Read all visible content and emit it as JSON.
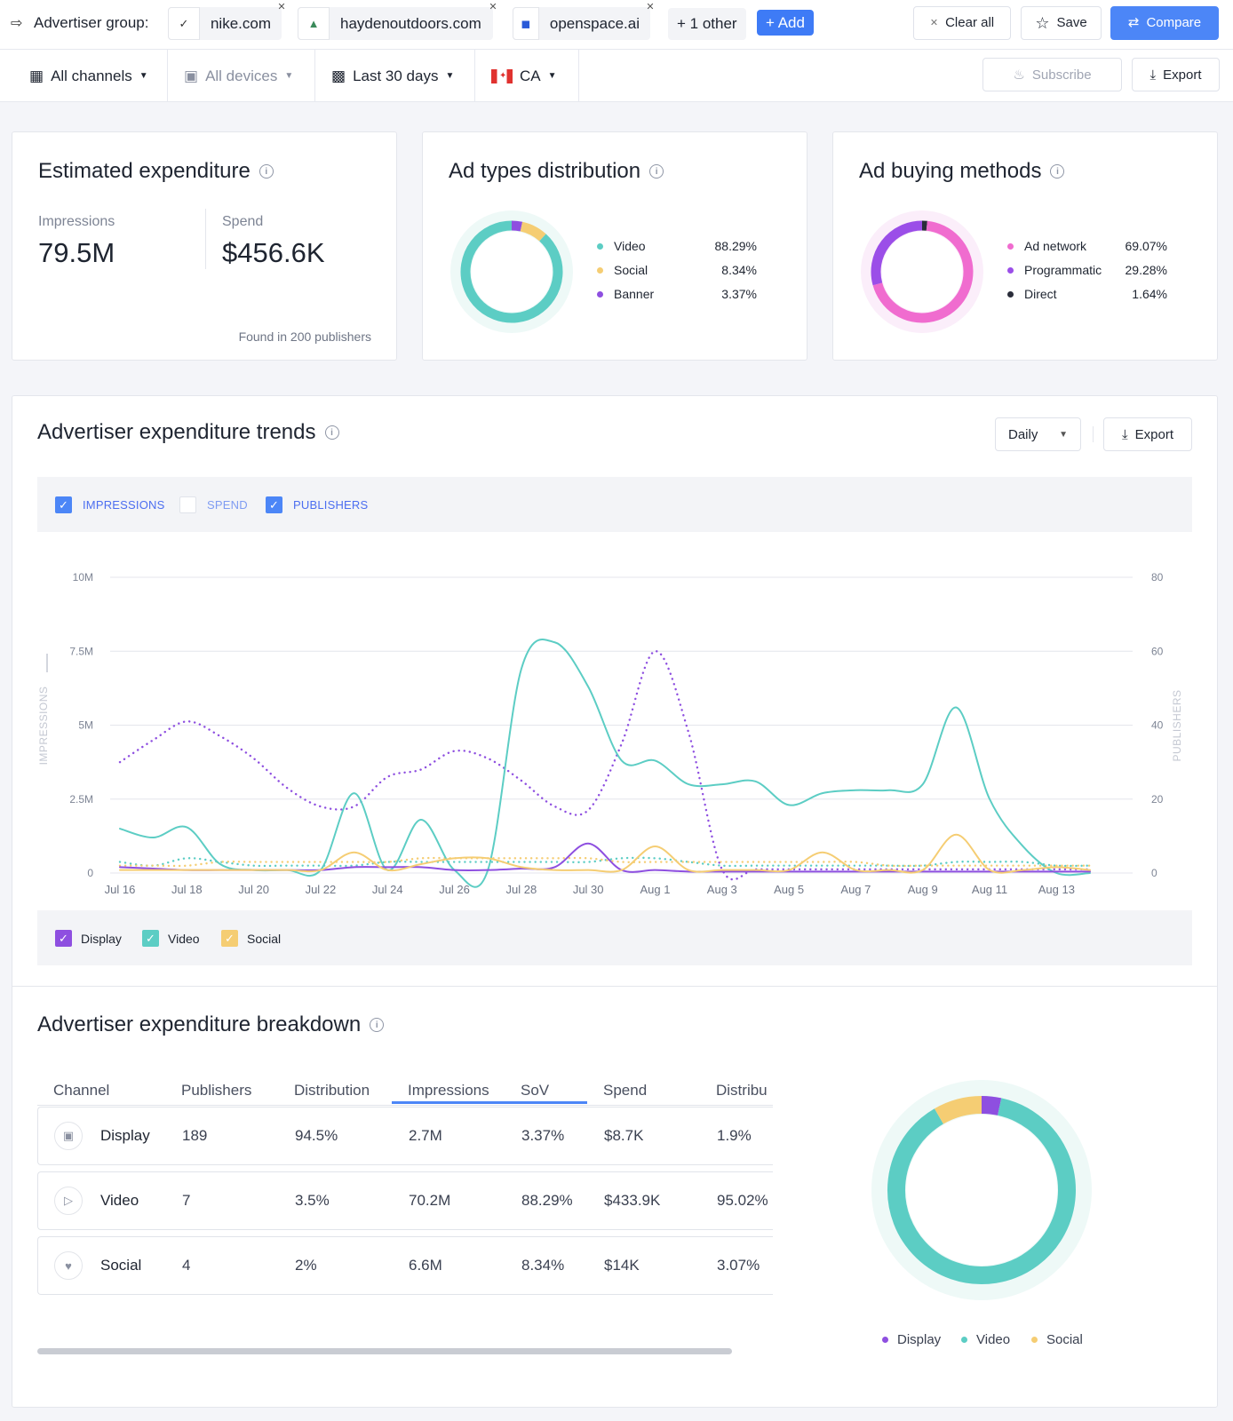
{
  "header": {
    "group_label": "Advertiser group:",
    "advertisers": [
      {
        "name": "nike.com",
        "logo": "nike-logo-icon"
      },
      {
        "name": "haydenoutdoors.com",
        "logo": "hayden-logo-icon"
      },
      {
        "name": "openspace.ai",
        "logo": "openspace-logo-icon"
      }
    ],
    "other_label": "+ 1 other",
    "add_label": "+ Add",
    "clear_label": "Clear all",
    "save_label": "Save",
    "compare_label": "Compare"
  },
  "filters": {
    "channels": "All channels",
    "devices": "All devices",
    "period": "Last 30 days",
    "country": "CA",
    "subscribe_label": "Subscribe",
    "export_label": "Export"
  },
  "expenditure": {
    "title": "Estimated expenditure",
    "impressions_label": "Impressions",
    "impressions_value": "79.5M",
    "spend_label": "Spend",
    "spend_value": "$456.6K",
    "found_text": "Found in 200 publishers"
  },
  "ad_types": {
    "title": "Ad types distribution",
    "items": [
      {
        "label": "Video",
        "pct": "88.29%",
        "value": 88.29,
        "color": "#5ccdc4"
      },
      {
        "label": "Social",
        "pct": "8.34%",
        "value": 8.34,
        "color": "#f5cd73"
      },
      {
        "label": "Banner",
        "pct": "3.37%",
        "value": 3.37,
        "color": "#8e4fe0"
      }
    ]
  },
  "buying_methods": {
    "title": "Ad buying methods",
    "items": [
      {
        "label": "Ad network",
        "pct": "69.07%",
        "value": 69.07,
        "color": "#f06ccf"
      },
      {
        "label": "Programmatic",
        "pct": "29.28%",
        "value": 29.28,
        "color": "#9b4ee8"
      },
      {
        "label": "Direct",
        "pct": "1.64%",
        "value": 1.64,
        "color": "#2a2d3a"
      }
    ]
  },
  "trends": {
    "title": "Advertiser expenditure trends",
    "granularity": "Daily",
    "export_label": "Export",
    "metric_toggles": [
      {
        "label": "IMPRESSIONS",
        "checked": true
      },
      {
        "label": "SPEND",
        "checked": false
      },
      {
        "label": "PUBLISHERS",
        "checked": true
      }
    ],
    "channel_toggles": [
      {
        "label": "Display",
        "color": "#8e4fe0"
      },
      {
        "label": "Video",
        "color": "#5ccdc4"
      },
      {
        "label": "Social",
        "color": "#f5cd73"
      }
    ]
  },
  "chart_data": {
    "type": "line",
    "x": [
      "Jul 16",
      "Jul 17",
      "Jul 18",
      "Jul 19",
      "Jul 20",
      "Jul 21",
      "Jul 22",
      "Jul 23",
      "Jul 24",
      "Jul 25",
      "Jul 26",
      "Jul 27",
      "Jul 28",
      "Jul 29",
      "Jul 30",
      "Jul 31",
      "Aug 1",
      "Aug 2",
      "Aug 3",
      "Aug 4",
      "Aug 5",
      "Aug 6",
      "Aug 7",
      "Aug 8",
      "Aug 9",
      "Aug 10",
      "Aug 11",
      "Aug 12",
      "Aug 13",
      "Aug 14"
    ],
    "xticks": [
      "Jul 16",
      "Jul 18",
      "Jul 20",
      "Jul 22",
      "Jul 24",
      "Jul 26",
      "Jul 28",
      "Jul 30",
      "Aug 1",
      "Aug 3",
      "Aug 5",
      "Aug 7",
      "Aug 9",
      "Aug 11",
      "Aug 13"
    ],
    "ylabel": "IMPRESSIONS",
    "y2label": "PUBLISHERS",
    "yticks": [
      "0",
      "2.5M",
      "5M",
      "7.5M",
      "10M"
    ],
    "y2ticks": [
      "0",
      "20",
      "40",
      "60",
      "80"
    ],
    "ylim": [
      0,
      10000000
    ],
    "y2lim": [
      0,
      80
    ],
    "grid": true,
    "series": [
      {
        "name": "Video",
        "axis": "impressions",
        "style": "solid",
        "color": "#5ccdc4",
        "values": [
          1500000,
          1200000,
          1550000,
          300000,
          100000,
          100000,
          100000,
          2700000,
          100000,
          1800000,
          100000,
          100000,
          6900000,
          7800000,
          6300000,
          3800000,
          3800000,
          3000000,
          3000000,
          3100000,
          2300000,
          2700000,
          2800000,
          2800000,
          3000000,
          5600000,
          2500000,
          900000,
          0,
          0
        ]
      },
      {
        "name": "Display",
        "axis": "impressions",
        "style": "solid",
        "color": "#8e4fe0",
        "values": [
          200000,
          150000,
          100000,
          100000,
          100000,
          100000,
          100000,
          200000,
          200000,
          200000,
          100000,
          100000,
          150000,
          200000,
          1000000,
          100000,
          100000,
          50000,
          50000,
          50000,
          50000,
          50000,
          50000,
          50000,
          50000,
          50000,
          50000,
          50000,
          50000,
          50000
        ]
      },
      {
        "name": "Social",
        "axis": "impressions",
        "style": "solid",
        "color": "#f5cd73",
        "values": [
          100000,
          100000,
          100000,
          100000,
          100000,
          100000,
          100000,
          700000,
          100000,
          300000,
          500000,
          500000,
          200000,
          100000,
          100000,
          100000,
          900000,
          100000,
          100000,
          100000,
          100000,
          700000,
          100000,
          100000,
          100000,
          1300000,
          100000,
          100000,
          200000,
          100000
        ]
      },
      {
        "name": "Display",
        "axis": "publishers",
        "style": "dotted",
        "color": "#8e4fe0",
        "values": [
          30,
          36,
          41,
          37,
          31,
          23,
          18,
          18,
          26,
          28,
          33,
          31,
          25,
          18,
          17,
          35,
          60,
          38,
          1,
          1,
          1,
          1,
          1,
          1,
          1,
          1,
          1,
          1,
          1,
          1
        ]
      },
      {
        "name": "Video",
        "axis": "publishers",
        "style": "dotted",
        "color": "#5ccdc4",
        "values": [
          3,
          2,
          4,
          3,
          2,
          2,
          2,
          2,
          3,
          3,
          3,
          3,
          3,
          3,
          3,
          4,
          4,
          3,
          2,
          2,
          2,
          2,
          2,
          2,
          2,
          3,
          3,
          3,
          2,
          2
        ]
      },
      {
        "name": "Social",
        "axis": "publishers",
        "style": "dotted",
        "color": "#f5cd73",
        "values": [
          2,
          2,
          2,
          3,
          3,
          3,
          3,
          3,
          3,
          4,
          4,
          4,
          4,
          4,
          4,
          3,
          3,
          3,
          3,
          3,
          3,
          3,
          3,
          2,
          2,
          2,
          2,
          2,
          2,
          2
        ]
      }
    ]
  },
  "breakdown": {
    "title": "Advertiser expenditure breakdown",
    "columns": [
      "Channel",
      "Publishers",
      "Distribution",
      "Impressions",
      "SoV",
      "Spend",
      "Distribu"
    ],
    "rows": [
      {
        "channel": "Display",
        "icon": "image-icon",
        "publishers": "189",
        "distribution": "94.5%",
        "impressions": "2.7M",
        "sov": "3.37%",
        "spend": "$8.7K",
        "spend_dist": "1.9%"
      },
      {
        "channel": "Video",
        "icon": "play-icon",
        "publishers": "7",
        "distribution": "3.5%",
        "impressions": "70.2M",
        "sov": "88.29%",
        "spend": "$433.9K",
        "spend_dist": "95.02%"
      },
      {
        "channel": "Social",
        "icon": "thumbs-up-icon",
        "publishers": "4",
        "distribution": "2%",
        "impressions": "6.6M",
        "sov": "8.34%",
        "spend": "$14K",
        "spend_dist": "3.07%"
      }
    ],
    "donut": [
      {
        "label": "Display",
        "value": 3.37,
        "color": "#8e4fe0"
      },
      {
        "label": "Video",
        "value": 88.29,
        "color": "#5ccdc4"
      },
      {
        "label": "Social",
        "value": 8.34,
        "color": "#f5cd73"
      }
    ]
  }
}
